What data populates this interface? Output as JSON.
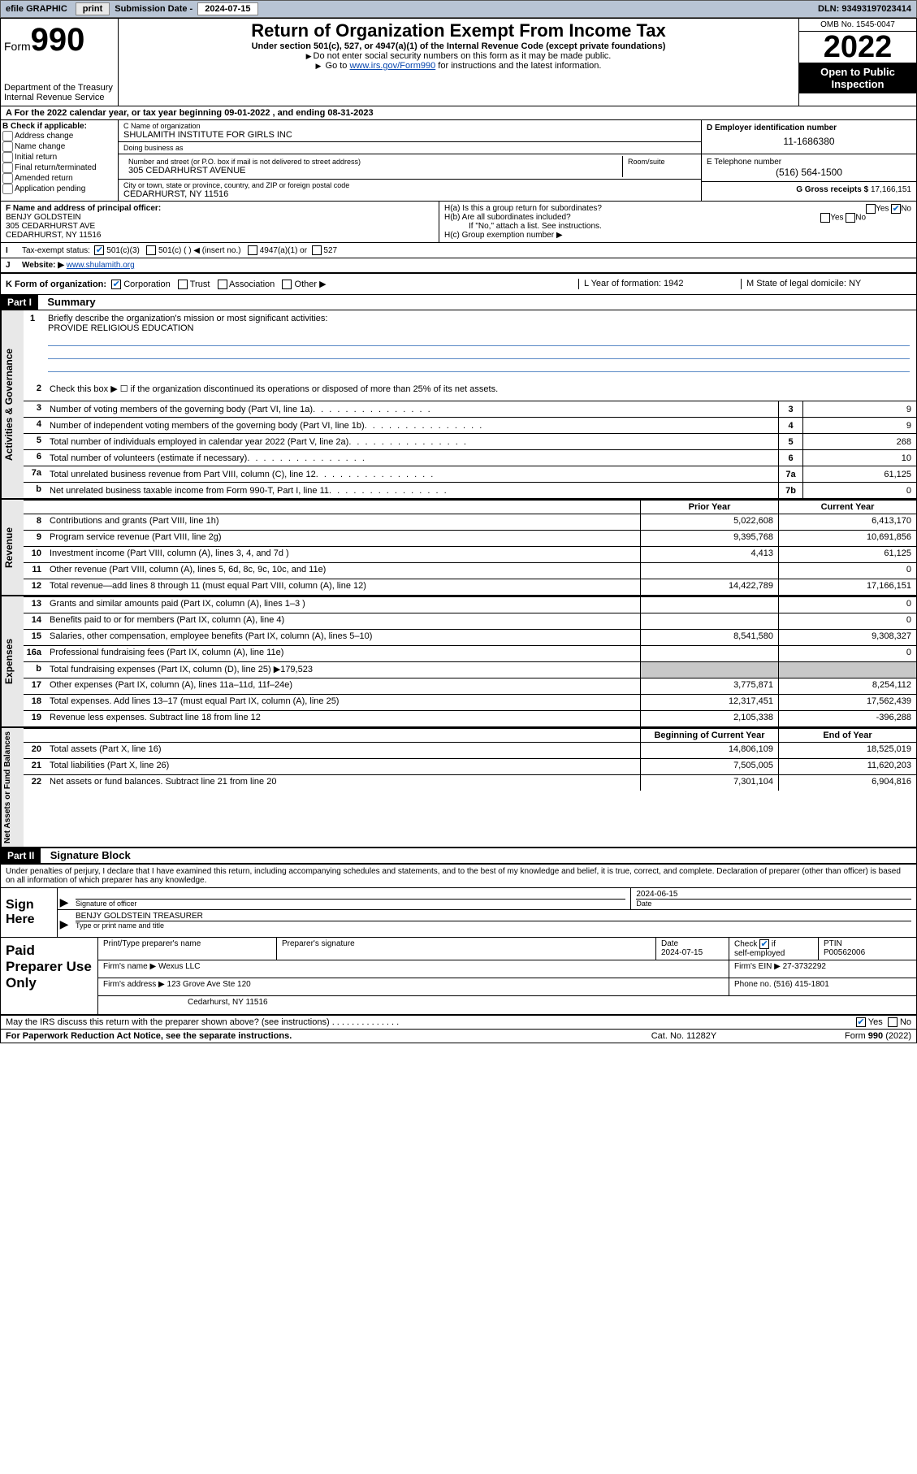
{
  "topbar": {
    "efile_label": "efile GRAPHIC",
    "print_btn": "print",
    "sub_date_label": "Submission Date -",
    "sub_date": "2024-07-15",
    "dln_label": "DLN:",
    "dln": "93493197023414"
  },
  "header": {
    "form_word": "Form",
    "form_num": "990",
    "dept": "Department of the Treasury",
    "irs": "Internal Revenue Service",
    "title": "Return of Organization Exempt From Income Tax",
    "sub": "Under section 501(c), 527, or 4947(a)(1) of the Internal Revenue Code (except private foundations)",
    "note1": "Do not enter social security numbers on this form as it may be made public.",
    "note2_pre": "Go to ",
    "note2_link": "www.irs.gov/Form990",
    "note2_post": " for instructions and the latest information.",
    "omb": "OMB No. 1545-0047",
    "year": "2022",
    "open_pub": "Open to Public Inspection"
  },
  "row_a": "A For the 2022 calendar year, or tax year beginning 09-01-2022   , and ending 08-31-2023",
  "box_b": {
    "label": "B Check if applicable:",
    "items": [
      "Address change",
      "Name change",
      "Initial return",
      "Final return/terminated",
      "Amended return",
      "Application pending"
    ]
  },
  "box_c": {
    "name_lab": "C Name of organization",
    "name": "SHULAMITH INSTITUTE FOR GIRLS INC",
    "dba_lab": "Doing business as",
    "dba": "",
    "addr_lab": "Number and street (or P.O. box if mail is not delivered to street address)",
    "room_lab": "Room/suite",
    "addr": "305 CEDARHURST AVENUE",
    "city_lab": "City or town, state or province, country, and ZIP or foreign postal code",
    "city": "CEDARHURST, NY  11516"
  },
  "box_d": {
    "lab": "D Employer identification number",
    "val": "11-1686380"
  },
  "box_e": {
    "lab": "E Telephone number",
    "val": "(516) 564-1500"
  },
  "box_g": {
    "lab": "G Gross receipts $",
    "val": "17,166,151"
  },
  "box_f": {
    "lab": "F Name and address of principal officer:",
    "name": "BENJY GOLDSTEIN",
    "addr1": "305 CEDARHURST AVE",
    "addr2": "CEDARHURST, NY  11516"
  },
  "box_h": {
    "ha": "H(a)  Is this a group return for subordinates?",
    "hb": "H(b)  Are all subordinates included?",
    "hb_note": "If \"No,\" attach a list. See instructions.",
    "hc": "H(c)  Group exemption number ▶",
    "yes": "Yes",
    "no": "No"
  },
  "row_i": {
    "lab": "Tax-exempt status:",
    "opts": [
      "501(c)(3)",
      "501(c) (  ) ◀ (insert no.)",
      "4947(a)(1) or",
      "527"
    ]
  },
  "row_j": {
    "lab": "Website: ▶",
    "val": "www.shulamith.org"
  },
  "row_k": {
    "lab": "K Form of organization:",
    "opts": [
      "Corporation",
      "Trust",
      "Association",
      "Other ▶"
    ],
    "l": "L Year of formation: 1942",
    "m": "M State of legal domicile: NY"
  },
  "part1": {
    "hdr": "Part I",
    "title": "Summary"
  },
  "mission": {
    "lab": "Briefly describe the organization's mission or most significant activities:",
    "text": "PROVIDE RELIGIOUS EDUCATION"
  },
  "line2_text": "Check this box ▶ ☐  if the organization discontinued its operations or disposed of more than 25% of its net assets.",
  "gov_lines": [
    {
      "n": "3",
      "d": "Number of voting members of the governing body (Part VI, line 1a)",
      "b": "3",
      "v": "9"
    },
    {
      "n": "4",
      "d": "Number of independent voting members of the governing body (Part VI, line 1b)",
      "b": "4",
      "v": "9"
    },
    {
      "n": "5",
      "d": "Total number of individuals employed in calendar year 2022 (Part V, line 2a)",
      "b": "5",
      "v": "268"
    },
    {
      "n": "6",
      "d": "Total number of volunteers (estimate if necessary)",
      "b": "6",
      "v": "10"
    },
    {
      "n": "7a",
      "d": "Total unrelated business revenue from Part VIII, column (C), line 12",
      "b": "7a",
      "v": "61,125"
    },
    {
      "n": "b",
      "d": "Net unrelated business taxable income from Form 990-T, Part I, line 11",
      "b": "7b",
      "v": "0"
    }
  ],
  "col_hdrs": {
    "prior": "Prior Year",
    "current": "Current Year",
    "boy": "Beginning of Current Year",
    "eoy": "End of Year"
  },
  "revenue": [
    {
      "n": "8",
      "d": "Contributions and grants (Part VIII, line 1h)",
      "p": "5,022,608",
      "c": "6,413,170"
    },
    {
      "n": "9",
      "d": "Program service revenue (Part VIII, line 2g)",
      "p": "9,395,768",
      "c": "10,691,856"
    },
    {
      "n": "10",
      "d": "Investment income (Part VIII, column (A), lines 3, 4, and 7d )",
      "p": "4,413",
      "c": "61,125"
    },
    {
      "n": "11",
      "d": "Other revenue (Part VIII, column (A), lines 5, 6d, 8c, 9c, 10c, and 11e)",
      "p": "",
      "c": "0"
    },
    {
      "n": "12",
      "d": "Total revenue—add lines 8 through 11 (must equal Part VIII, column (A), line 12)",
      "p": "14,422,789",
      "c": "17,166,151"
    }
  ],
  "expenses": [
    {
      "n": "13",
      "d": "Grants and similar amounts paid (Part IX, column (A), lines 1–3 )",
      "p": "",
      "c": "0"
    },
    {
      "n": "14",
      "d": "Benefits paid to or for members (Part IX, column (A), line 4)",
      "p": "",
      "c": "0"
    },
    {
      "n": "15",
      "d": "Salaries, other compensation, employee benefits (Part IX, column (A), lines 5–10)",
      "p": "8,541,580",
      "c": "9,308,327"
    },
    {
      "n": "16a",
      "d": "Professional fundraising fees (Part IX, column (A), line 11e)",
      "p": "",
      "c": "0"
    },
    {
      "n": "b",
      "d": "Total fundraising expenses (Part IX, column (D), line 25) ▶179,523",
      "p": "grey",
      "c": "grey"
    },
    {
      "n": "17",
      "d": "Other expenses (Part IX, column (A), lines 11a–11d, 11f–24e)",
      "p": "3,775,871",
      "c": "8,254,112"
    },
    {
      "n": "18",
      "d": "Total expenses. Add lines 13–17 (must equal Part IX, column (A), line 25)",
      "p": "12,317,451",
      "c": "17,562,439"
    },
    {
      "n": "19",
      "d": "Revenue less expenses. Subtract line 18 from line 12",
      "p": "2,105,338",
      "c": "-396,288"
    }
  ],
  "netassets": [
    {
      "n": "20",
      "d": "Total assets (Part X, line 16)",
      "p": "14,806,109",
      "c": "18,525,019"
    },
    {
      "n": "21",
      "d": "Total liabilities (Part X, line 26)",
      "p": "7,505,005",
      "c": "11,620,203"
    },
    {
      "n": "22",
      "d": "Net assets or fund balances. Subtract line 21 from line 20",
      "p": "7,301,104",
      "c": "6,904,816"
    }
  ],
  "vtabs": {
    "gov": "Activities & Governance",
    "rev": "Revenue",
    "exp": "Expenses",
    "net": "Net Assets or Fund Balances"
  },
  "part2": {
    "hdr": "Part II",
    "title": "Signature Block"
  },
  "sig_intro": "Under penalties of perjury, I declare that I have examined this return, including accompanying schedules and statements, and to the best of my knowledge and belief, it is true, correct, and complete. Declaration of preparer (other than officer) is based on all information of which preparer has any knowledge.",
  "sign": {
    "here": "Sign Here",
    "sig_lab": "Signature of officer",
    "date_lab": "Date",
    "date": "2024-06-15",
    "name": "BENJY GOLDSTEIN  TREASURER",
    "name_lab": "Type or print name and title"
  },
  "prep": {
    "title": "Paid Preparer Use Only",
    "h1": "Print/Type preparer's name",
    "h2": "Preparer's signature",
    "h3": "Date",
    "h4": "Check",
    "h4b": "self-employed",
    "h5": "PTIN",
    "date": "2024-07-15",
    "ptin": "P00562006",
    "if": "if",
    "firm_lab": "Firm's name   ▶",
    "firm": "Wexus LLC",
    "ein_lab": "Firm's EIN ▶",
    "ein": "27-3732292",
    "addr_lab": "Firm's address ▶",
    "addr1": "123 Grove Ave Ste 120",
    "addr2": "Cedarhurst, NY  11516",
    "phone_lab": "Phone no.",
    "phone": "(516) 415-1801"
  },
  "footer": {
    "discuss": "May the IRS discuss this return with the preparer shown above? (see instructions)",
    "yes": "Yes",
    "no": "No",
    "pra": "For Paperwork Reduction Act Notice, see the separate instructions.",
    "cat": "Cat. No. 11282Y",
    "form": "Form 990 (2022)"
  },
  "colors": {
    "link": "#0645ad",
    "check": "#0066cc",
    "topbar": "#b8c4d4",
    "grey": "#c8c8c8",
    "tab": "#e8e8e8",
    "blueline": "#5a8ac6"
  }
}
